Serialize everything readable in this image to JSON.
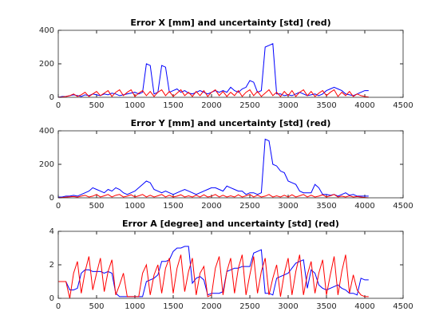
{
  "chart_data": [
    {
      "type": "line",
      "title": "Error X [mm] and uncertainty [std] (red)",
      "x": [
        0,
        50,
        100,
        150,
        200,
        250,
        300,
        350,
        400,
        450,
        500,
        550,
        600,
        650,
        700,
        750,
        800,
        850,
        900,
        950,
        1000,
        1050,
        1100,
        1150,
        1200,
        1250,
        1300,
        1350,
        1400,
        1450,
        1500,
        1550,
        1600,
        1650,
        1700,
        1750,
        1800,
        1850,
        1900,
        1950,
        2000,
        2050,
        2100,
        2150,
        2200,
        2250,
        2300,
        2350,
        2400,
        2450,
        2500,
        2550,
        2600,
        2650,
        2700,
        2750,
        2800,
        2850,
        2900,
        2950,
        3000,
        3050,
        3100,
        3150,
        3200,
        3250,
        3300,
        3350,
        3400,
        3450,
        3500,
        3550,
        3600,
        3650,
        3700,
        3750,
        3800,
        3850,
        3900,
        3950,
        4000,
        4050
      ],
      "series": [
        {
          "color": "#0000ff",
          "values": [
            0,
            5,
            5,
            10,
            15,
            10,
            5,
            15,
            10,
            20,
            15,
            10,
            20,
            15,
            25,
            20,
            10,
            15,
            20,
            25,
            30,
            20,
            30,
            200,
            190,
            20,
            30,
            190,
            180,
            30,
            40,
            50,
            30,
            40,
            25,
            20,
            30,
            40,
            30,
            20,
            30,
            40,
            30,
            40,
            30,
            60,
            40,
            30,
            50,
            60,
            100,
            90,
            30,
            40,
            300,
            310,
            320,
            20,
            20,
            10,
            15,
            10,
            20,
            30,
            20,
            10,
            15,
            20,
            10,
            20,
            40,
            50,
            60,
            50,
            40,
            20,
            15,
            10,
            20,
            30,
            40,
            40
          ]
        },
        {
          "color": "#ff0000",
          "values": [
            0,
            2,
            5,
            10,
            20,
            5,
            15,
            30,
            5,
            20,
            35,
            10,
            25,
            40,
            5,
            30,
            45,
            10,
            30,
            45,
            5,
            25,
            40,
            10,
            35,
            5,
            30,
            45,
            10,
            35,
            5,
            25,
            45,
            10,
            30,
            5,
            35,
            10,
            40,
            5,
            30,
            45,
            10,
            35,
            5,
            30,
            10,
            40,
            5,
            30,
            45,
            10,
            35,
            5,
            25,
            45,
            10,
            30,
            5,
            35,
            10,
            40,
            5,
            30,
            45,
            10,
            35,
            5,
            25,
            40,
            10,
            30,
            45,
            5,
            30,
            10,
            35,
            5,
            20,
            10,
            5,
            2
          ]
        }
      ],
      "xlim": [
        0,
        4500
      ],
      "xticks": [
        0,
        500,
        1000,
        1500,
        2000,
        2500,
        3000,
        3500,
        4000,
        4500
      ],
      "ylim": [
        0,
        400
      ],
      "yticks": [
        0,
        200,
        400
      ]
    },
    {
      "type": "line",
      "title": "Error Y [mm] and uncertainty [std] (red)",
      "x": [
        0,
        50,
        100,
        150,
        200,
        250,
        300,
        350,
        400,
        450,
        500,
        550,
        600,
        650,
        700,
        750,
        800,
        850,
        900,
        950,
        1000,
        1050,
        1100,
        1150,
        1200,
        1250,
        1300,
        1350,
        1400,
        1450,
        1500,
        1550,
        1600,
        1650,
        1700,
        1750,
        1800,
        1850,
        1900,
        1950,
        2000,
        2050,
        2100,
        2150,
        2200,
        2250,
        2300,
        2350,
        2400,
        2450,
        2500,
        2550,
        2600,
        2650,
        2700,
        2750,
        2800,
        2850,
        2900,
        2950,
        3000,
        3050,
        3100,
        3150,
        3200,
        3250,
        3300,
        3350,
        3400,
        3450,
        3500,
        3550,
        3600,
        3650,
        3700,
        3750,
        3800,
        3850,
        3900,
        3950,
        4000,
        4050
      ],
      "series": [
        {
          "color": "#0000ff",
          "values": [
            5,
            5,
            10,
            10,
            15,
            10,
            20,
            30,
            40,
            60,
            50,
            40,
            30,
            50,
            40,
            60,
            50,
            30,
            20,
            30,
            40,
            60,
            80,
            100,
            90,
            50,
            40,
            30,
            40,
            30,
            20,
            30,
            40,
            50,
            40,
            30,
            20,
            30,
            40,
            50,
            60,
            60,
            50,
            40,
            70,
            60,
            50,
            40,
            40,
            20,
            30,
            30,
            20,
            30,
            350,
            340,
            200,
            190,
            160,
            150,
            100,
            90,
            80,
            40,
            30,
            30,
            30,
            80,
            60,
            20,
            20,
            15,
            20,
            10,
            20,
            30,
            15,
            20,
            10,
            10,
            10,
            10
          ]
        },
        {
          "color": "#ff0000",
          "values": [
            0,
            2,
            4,
            6,
            8,
            4,
            10,
            15,
            5,
            10,
            20,
            5,
            12,
            20,
            5,
            15,
            20,
            5,
            10,
            18,
            5,
            12,
            20,
            5,
            15,
            5,
            12,
            20,
            5,
            15,
            5,
            10,
            18,
            5,
            12,
            5,
            15,
            5,
            18,
            5,
            10,
            20,
            5,
            15,
            5,
            12,
            5,
            18,
            5,
            12,
            20,
            5,
            15,
            5,
            10,
            20,
            5,
            12,
            5,
            15,
            5,
            18,
            5,
            12,
            20,
            5,
            15,
            5,
            10,
            18,
            5,
            12,
            20,
            5,
            10,
            5,
            12,
            5,
            8,
            5,
            2,
            0
          ]
        }
      ],
      "xlim": [
        0,
        4500
      ],
      "xticks": [
        0,
        500,
        1000,
        1500,
        2000,
        2500,
        3000,
        3500,
        4000,
        4500
      ],
      "ylim": [
        0,
        400
      ],
      "yticks": [
        0,
        200,
        400
      ]
    },
    {
      "type": "line",
      "title": "Error A [degree] and uncertainty [std] (red)",
      "x": [
        0,
        50,
        100,
        150,
        200,
        250,
        300,
        350,
        400,
        450,
        500,
        550,
        600,
        650,
        700,
        750,
        800,
        850,
        900,
        950,
        1000,
        1050,
        1100,
        1150,
        1200,
        1250,
        1300,
        1350,
        1400,
        1450,
        1500,
        1550,
        1600,
        1650,
        1700,
        1750,
        1800,
        1850,
        1900,
        1950,
        2000,
        2050,
        2100,
        2150,
        2200,
        2250,
        2300,
        2350,
        2400,
        2450,
        2500,
        2550,
        2600,
        2650,
        2700,
        2750,
        2800,
        2850,
        2900,
        2950,
        3000,
        3050,
        3100,
        3150,
        3200,
        3250,
        3300,
        3350,
        3400,
        3450,
        3500,
        3550,
        3600,
        3650,
        3700,
        3750,
        3800,
        3850,
        3900,
        3950,
        4000,
        4050
      ],
      "series": [
        {
          "color": "#0000ff",
          "values": [
            1,
            1,
            1,
            0.5,
            0.5,
            0.6,
            1.5,
            1.7,
            1.7,
            1.6,
            1.6,
            1.6,
            1.5,
            1.6,
            1.5,
            0.3,
            0.1,
            0.1,
            0.1,
            0.1,
            0.1,
            0.1,
            0.1,
            1.0,
            1.1,
            1.2,
            1.4,
            2.2,
            2.2,
            2.3,
            2.8,
            3.0,
            3.0,
            3.1,
            3.1,
            0.9,
            1.2,
            1.3,
            1.1,
            0.2,
            0.3,
            0.3,
            0.3,
            0.4,
            1.6,
            1.7,
            1.8,
            1.8,
            1.9,
            1.9,
            1.9,
            2.7,
            2.8,
            2.9,
            0.3,
            0.3,
            0.2,
            1.2,
            1.3,
            1.4,
            1.5,
            1.8,
            2.1,
            2.2,
            2.3,
            0.6,
            1.7,
            1.5,
            0.8,
            0.6,
            0.5,
            0.6,
            0.7,
            0.8,
            0.6,
            0.5,
            0.3,
            0.3,
            0.2,
            1.2,
            1.1,
            1.1
          ]
        },
        {
          "color": "#ff0000",
          "values": [
            1,
            1,
            1,
            0,
            1.5,
            2.2,
            0.3,
            1.6,
            2.5,
            0.5,
            1.5,
            2.4,
            0.4,
            1.6,
            2.3,
            0.2,
            0.8,
            1.5,
            0.1,
            0.1,
            0.1,
            0.1,
            1.5,
            2.0,
            0.2,
            1.4,
            2.0,
            0.3,
            1.8,
            2.4,
            0.3,
            1.8,
            2.6,
            0.4,
            1.6,
            2.4,
            0.2,
            1.5,
            1.9,
            0.1,
            0.2,
            1.8,
            2.5,
            0.2,
            1.6,
            2.4,
            0.3,
            1.8,
            2.6,
            0.2,
            1.4,
            2.5,
            0.3,
            1.6,
            2.4,
            0.2,
            1.2,
            2.0,
            0.1,
            1.5,
            2.4,
            0.2,
            1.6,
            2.6,
            0.2,
            1.4,
            2.2,
            0.3,
            1.5,
            2.3,
            0.2,
            1.4,
            2.5,
            0.2,
            1.6,
            2.6,
            0.3,
            1.4,
            0.5,
            0.2,
            0.1,
            0.1
          ]
        }
      ],
      "xlim": [
        0,
        4500
      ],
      "xticks": [
        0,
        500,
        1000,
        1500,
        2000,
        2500,
        3000,
        3500,
        4000,
        4500
      ],
      "ylim": [
        0,
        4
      ],
      "yticks": [
        0,
        2,
        4
      ]
    }
  ]
}
